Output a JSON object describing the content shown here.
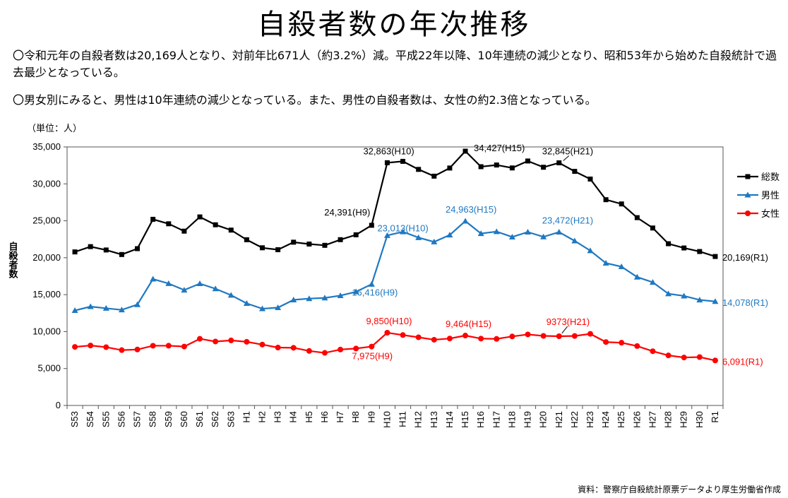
{
  "title": "自殺者数の年次推移",
  "bullets": [
    "〇令和元年の自殺者数は20,169人となり、対前年比671人（約3.2%）減。平成22年以降、10年連続の減少となり、昭和53年から始めた自殺統計で過去最少となっている。",
    "〇男女別にみると、男性は10年連続の減少となっている。また、男性の自殺者数は、女性の約2.3倍となっている。"
  ],
  "source": "資料：警察庁自殺統計原票データより厚生労働省作成",
  "chart_data": {
    "type": "line",
    "unit_label": "（単位：人）",
    "ylabel": "自殺者数",
    "ylim": [
      0,
      35000
    ],
    "yticks": [
      "0",
      "5,000",
      "10,000",
      "15,000",
      "20,000",
      "25,000",
      "30,000",
      "35,000"
    ],
    "categories": [
      "S53",
      "S54",
      "S55",
      "S56",
      "S57",
      "S58",
      "S59",
      "S60",
      "S61",
      "S62",
      "S63",
      "H1",
      "H2",
      "H3",
      "H4",
      "H5",
      "H6",
      "H7",
      "H8",
      "H9",
      "H10",
      "H11",
      "H12",
      "H13",
      "H14",
      "H15",
      "H16",
      "H17",
      "H18",
      "H19",
      "H20",
      "H21",
      "H22",
      "H23",
      "H24",
      "H25",
      "H26",
      "H27",
      "H28",
      "H29",
      "H30",
      "R1"
    ],
    "series": [
      {
        "name": "総数",
        "color": "#000000",
        "marker": "square",
        "values": [
          20788,
          21503,
          21048,
          20434,
          21228,
          25202,
          24596,
          23599,
          25524,
          24460,
          23742,
          22436,
          21346,
          21084,
          22104,
          21851,
          21679,
          22445,
          23104,
          24391,
          32863,
          33048,
          31957,
          31042,
          32143,
          34427,
          32325,
          32552,
          32155,
          33093,
          32249,
          32845,
          31690,
          30651,
          27858,
          27283,
          25427,
          24025,
          21897,
          21321,
          20840,
          20169
        ]
      },
      {
        "name": "男性",
        "color": "#1F78C1",
        "marker": "triangle",
        "values": [
          12859,
          13386,
          13155,
          12942,
          13654,
          17116,
          16508,
          15624,
          16497,
          15802,
          14934,
          13818,
          13102,
          13242,
          14296,
          14468,
          14560,
          14874,
          15393,
          16416,
          23013,
          23512,
          22727,
          22144,
          23080,
          24963,
          23272,
          23540,
          22813,
          23478,
          22831,
          23472,
          22283,
          20955,
          19273,
          18787,
          17386,
          16681,
          15121,
          14826,
          14290,
          14078
        ]
      },
      {
        "name": "女性",
        "color": "#FF0000",
        "marker": "circle",
        "values": [
          7929,
          8117,
          7893,
          7492,
          7574,
          8086,
          8088,
          7975,
          9027,
          8658,
          8808,
          8618,
          8244,
          7842,
          7808,
          7383,
          7119,
          7571,
          7711,
          7975,
          9850,
          9536,
          9230,
          8898,
          9063,
          9464,
          9053,
          9012,
          9342,
          9615,
          9418,
          9373,
          9407,
          9696,
          8585,
          8496,
          8041,
          7344,
          6776,
          6495,
          6550,
          6091
        ]
      }
    ],
    "annotations": [
      {
        "series": 0,
        "index": 19,
        "text": "24,391(H9)"
      },
      {
        "series": 0,
        "index": 20,
        "text": "32,863(H10)"
      },
      {
        "series": 0,
        "index": 25,
        "text": "34,427(H15)"
      },
      {
        "series": 0,
        "index": 31,
        "text": "32,845(H21)"
      },
      {
        "series": 0,
        "index": 41,
        "text": "20,169(R1)"
      },
      {
        "series": 1,
        "index": 19,
        "text": "16,416(H9)"
      },
      {
        "series": 1,
        "index": 20,
        "text": "23,013(H10)"
      },
      {
        "series": 1,
        "index": 25,
        "text": "24,963(H15)"
      },
      {
        "series": 1,
        "index": 31,
        "text": "23,472(H21)"
      },
      {
        "series": 1,
        "index": 41,
        "text": "14,078(R1)"
      },
      {
        "series": 2,
        "index": 19,
        "text": "7,975(H9)"
      },
      {
        "series": 2,
        "index": 20,
        "text": "9,850(H10)"
      },
      {
        "series": 2,
        "index": 25,
        "text": "9,464(H15)"
      },
      {
        "series": 2,
        "index": 31,
        "text": "9373(H21)"
      },
      {
        "series": 2,
        "index": 41,
        "text": "6,091(R1)"
      }
    ],
    "legend": {
      "position": "right"
    },
    "grid": false
  }
}
